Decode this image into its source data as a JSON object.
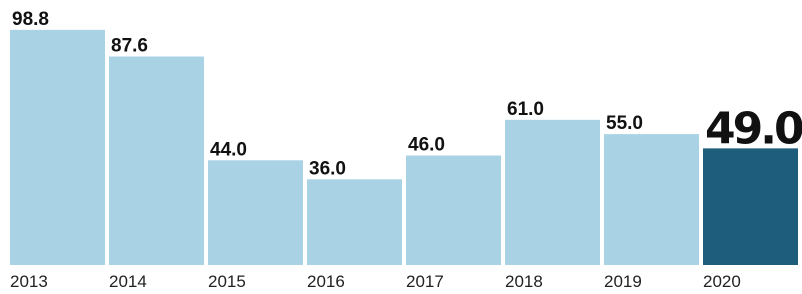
{
  "chart_data": {
    "type": "bar",
    "categories": [
      "2013",
      "2014",
      "2015",
      "2016",
      "2017",
      "2018",
      "2019",
      "2020"
    ],
    "values": [
      98.8,
      87.6,
      44.0,
      36.0,
      46.0,
      61.0,
      55.0,
      49.0
    ],
    "value_labels": [
      "98.8",
      "87.6",
      "44.0",
      "36.0",
      "46.0",
      "61.0",
      "55.0",
      "49.0"
    ],
    "colors": [
      "#a9d3e5",
      "#a9d3e5",
      "#a9d3e5",
      "#a9d3e5",
      "#a9d3e5",
      "#a9d3e5",
      "#a9d3e5",
      "#1f5d7c"
    ],
    "ylim": [
      0,
      100
    ]
  }
}
